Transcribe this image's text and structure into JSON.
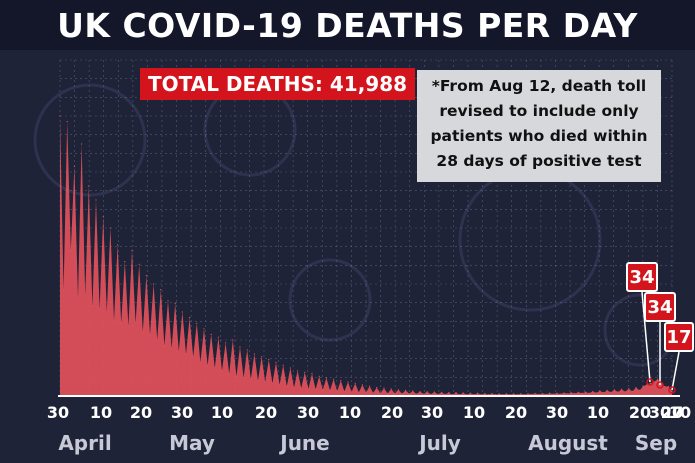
{
  "title": "UK COVID-19 DEATHS PER DAY",
  "total_label": "TOTAL DEATHS: 41,988",
  "note": "*From Aug 12, death toll\nrevised to include only\npatients who died within\n28 days of positive test",
  "colors": {
    "fill": "#e5525c",
    "callout": "#d4141c",
    "background": "#1f2338"
  },
  "icons": [
    "virus-icon"
  ],
  "chart_data": {
    "type": "area",
    "title": "UK COVID-19 DEATHS PER DAY",
    "xlabel": "",
    "ylabel": "",
    "ylim": [
      0,
      1200
    ],
    "grid": true,
    "x_start": "2020-03-30",
    "x_end": "2020-09-27",
    "x_tick_labels": [
      "30",
      "10",
      "20",
      "30",
      "10",
      "20",
      "30",
      "10",
      "20",
      "30",
      "10",
      "20",
      "30",
      "10",
      "20",
      "30",
      "10",
      "20",
      "27"
    ],
    "month_labels": [
      "April",
      "May",
      "June",
      "July",
      "August",
      "Sep"
    ],
    "series": [
      {
        "values": [
          1000,
          380,
          980,
          520,
          820,
          350,
          900,
          360,
          750,
          320,
          700,
          310,
          640,
          300,
          600,
          270,
          540,
          260,
          480,
          250,
          520,
          260,
          470,
          230,
          430,
          220,
          400,
          200,
          380,
          180,
          340,
          170,
          330,
          160,
          300,
          150,
          280,
          140,
          260,
          120,
          240,
          110,
          220,
          100,
          210,
          90,
          190,
          80,
          200,
          70,
          175,
          65,
          165,
          60,
          150,
          55,
          140,
          50,
          130,
          45,
          120,
          40,
          110,
          35,
          100,
          30,
          90,
          28,
          85,
          25,
          80,
          24,
          70,
          22,
          65,
          20,
          60,
          18,
          55,
          16,
          50,
          14,
          45,
          13,
          40,
          12,
          35,
          11,
          30,
          10,
          28,
          9,
          25,
          9,
          22,
          8,
          20,
          8,
          18,
          7,
          16,
          7,
          15,
          6,
          14,
          6,
          13,
          6,
          12,
          5,
          12,
          5,
          11,
          5,
          10,
          5,
          10,
          5,
          9,
          5,
          9,
          5,
          8,
          5,
          8,
          5,
          8,
          5,
          8,
          5,
          8,
          6,
          9,
          6,
          9,
          6,
          10,
          7,
          10,
          7,
          11,
          8,
          12,
          9,
          13,
          10,
          14,
          10,
          16,
          11,
          18,
          12,
          20,
          13,
          22,
          14,
          24,
          15,
          26,
          16,
          30,
          20,
          35,
          40,
          45,
          50,
          60,
          45,
          34,
          34,
          17
        ]
      }
    ],
    "annotations": [
      {
        "label": "34",
        "date": "2020-09-24"
      },
      {
        "label": "34",
        "date": "2020-09-26"
      },
      {
        "label": "17",
        "date": "2020-09-27"
      }
    ]
  }
}
